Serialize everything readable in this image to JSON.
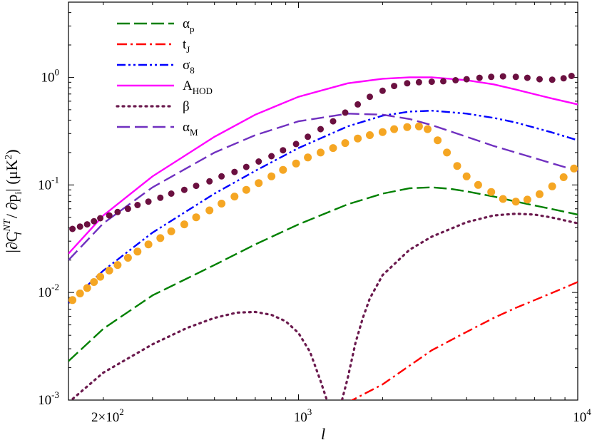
{
  "chart_data": {
    "type": "line",
    "title": "",
    "xscale": "log",
    "yscale": "log",
    "xlim": [
      150,
      10000
    ],
    "ylim": [
      0.001,
      5
    ],
    "xlabel": "l",
    "ylabel": "|∂C",
    "ylabel_parts": {
      "prefix": "|∂C",
      "sub": "l",
      "sup": "NT",
      "mid": " / ∂p",
      "sub2": "i",
      "suffix": "|  (μK",
      "sup2": "2",
      "end": ")"
    },
    "x_ticks": [
      {
        "value": 200,
        "base": "2×10",
        "exp": "2"
      },
      {
        "value": 1000,
        "base": "10",
        "exp": "3"
      },
      {
        "value": 10000,
        "base": "10",
        "exp": "4"
      }
    ],
    "y_ticks": [
      {
        "value": 0.001,
        "base": "10",
        "exp": "-3"
      },
      {
        "value": 0.01,
        "base": "10",
        "exp": "-2"
      },
      {
        "value": 0.1,
        "base": "10",
        "exp": "-1"
      },
      {
        "value": 1,
        "base": "10",
        "exp": "0"
      }
    ],
    "legend_position": "top-left",
    "series": [
      {
        "name": "alpha_p",
        "label_main": "α",
        "label_sub": "p",
        "color": "#008000",
        "dash": "18,6",
        "style": "line",
        "x": [
          150,
          200,
          300,
          500,
          700,
          1000,
          1500,
          2000,
          2500,
          3000,
          3500,
          4000,
          5000,
          6000,
          8000,
          10000
        ],
        "y": [
          0.0023,
          0.0046,
          0.0094,
          0.018,
          0.028,
          0.043,
          0.066,
          0.083,
          0.093,
          0.095,
          0.092,
          0.087,
          0.078,
          0.07,
          0.06,
          0.053
        ]
      },
      {
        "name": "t_J",
        "label_main": "t",
        "label_sub": "J",
        "color": "#ff0000",
        "dash": "14,5,3,5",
        "style": "line",
        "x": [
          1500,
          2000,
          3000,
          4000,
          5000,
          6000,
          8000,
          10000
        ],
        "y": [
          0.00095,
          0.0014,
          0.0029,
          0.0043,
          0.0058,
          0.0072,
          0.0098,
          0.0125
        ]
      },
      {
        "name": "sigma_8",
        "label_main": "σ",
        "label_sub": "8",
        "color": "#0000ff",
        "dash": "12,4,3,4,3,4",
        "style": "line",
        "x": [
          150,
          200,
          300,
          500,
          700,
          1000,
          1500,
          2000,
          2500,
          3000,
          4000,
          5000,
          6000,
          8000,
          10000
        ],
        "y": [
          0.008,
          0.016,
          0.036,
          0.083,
          0.135,
          0.22,
          0.35,
          0.44,
          0.48,
          0.49,
          0.46,
          0.42,
          0.38,
          0.31,
          0.26
        ]
      },
      {
        "name": "A_HOD",
        "label_main": "A",
        "label_sub": "HOD",
        "color": "#ff00ff",
        "dash": "",
        "style": "line",
        "x": [
          150,
          200,
          300,
          500,
          700,
          1000,
          1500,
          2000,
          2500,
          3000,
          4000,
          5000,
          6000,
          8000,
          10000
        ],
        "y": [
          0.023,
          0.052,
          0.12,
          0.28,
          0.45,
          0.66,
          0.88,
          0.97,
          1.0,
          1.0,
          0.94,
          0.86,
          0.77,
          0.64,
          0.56
        ]
      },
      {
        "name": "beta",
        "label_main": "β",
        "label_sub": "",
        "color": "#6b1a4e",
        "dash": "2,6",
        "style": "dotted",
        "x": [
          150,
          200,
          300,
          400,
          500,
          600,
          700,
          800,
          900,
          1000,
          1100,
          1200,
          1300,
          1400,
          1500,
          1600,
          1700,
          1800,
          2000,
          2500,
          3000,
          4000,
          5000,
          6000,
          7000,
          8000,
          10000
        ],
        "y": [
          0.00095,
          0.0018,
          0.0033,
          0.0047,
          0.0058,
          0.0065,
          0.0066,
          0.0062,
          0.0054,
          0.0042,
          0.0028,
          0.0015,
          0.0008,
          0.0008,
          0.0016,
          0.0034,
          0.0058,
          0.0088,
          0.0145,
          0.025,
          0.033,
          0.045,
          0.052,
          0.054,
          0.053,
          0.05,
          0.044
        ]
      },
      {
        "name": "alpha_M",
        "label_main": "α",
        "label_sub": "M",
        "color": "#7030c0",
        "dash": "18,7",
        "style": "line",
        "x": [
          150,
          200,
          300,
          500,
          700,
          1000,
          1500,
          2000,
          2500,
          3000,
          4000,
          5000,
          6000,
          8000,
          10000
        ],
        "y": [
          0.02,
          0.044,
          0.095,
          0.2,
          0.29,
          0.39,
          0.46,
          0.45,
          0.41,
          0.36,
          0.28,
          0.23,
          0.2,
          0.16,
          0.135
        ]
      },
      {
        "name": "markers_maroon",
        "label_main": "",
        "label_sub": "",
        "color": "#6b1040",
        "dash": "",
        "style": "markers",
        "radius": 4.5,
        "x": [
          155,
          165,
          175,
          185,
          195,
          210,
          225,
          245,
          265,
          290,
          320,
          350,
          390,
          430,
          480,
          530,
          590,
          650,
          720,
          800,
          880,
          980,
          1080,
          1200,
          1330,
          1470,
          1630,
          1800,
          2000,
          2200,
          2450,
          2700,
          3000,
          3300,
          3650,
          4000,
          4450,
          4900,
          5400,
          6000,
          6600,
          7300,
          8100,
          8900,
          9500
        ],
        "y": [
          0.039,
          0.041,
          0.043,
          0.046,
          0.049,
          0.052,
          0.056,
          0.06,
          0.065,
          0.07,
          0.076,
          0.083,
          0.09,
          0.098,
          0.108,
          0.12,
          0.132,
          0.147,
          0.165,
          0.185,
          0.21,
          0.24,
          0.28,
          0.33,
          0.39,
          0.47,
          0.56,
          0.66,
          0.75,
          0.83,
          0.88,
          0.9,
          0.91,
          0.92,
          0.94,
          0.96,
          0.99,
          1.01,
          1.02,
          1.01,
          0.99,
          0.96,
          0.95,
          0.98,
          1.03
        ]
      },
      {
        "name": "markers_orange",
        "label_main": "",
        "label_sub": "",
        "color": "#f5a623",
        "dash": "",
        "style": "markers",
        "radius": 5.5,
        "x": [
          155,
          165,
          175,
          185,
          195,
          210,
          225,
          245,
          265,
          290,
          320,
          350,
          390,
          430,
          480,
          530,
          590,
          650,
          720,
          800,
          880,
          980,
          1080,
          1200,
          1330,
          1470,
          1630,
          1800,
          2000,
          2200,
          2450,
          2700,
          2900,
          3150,
          3400,
          3700,
          4000,
          4400,
          4900,
          5400,
          6000,
          6600,
          7300,
          8100,
          8900,
          9700
        ],
        "y": [
          0.0085,
          0.0098,
          0.011,
          0.0125,
          0.014,
          0.016,
          0.018,
          0.021,
          0.024,
          0.028,
          0.032,
          0.037,
          0.043,
          0.05,
          0.058,
          0.067,
          0.078,
          0.09,
          0.104,
          0.12,
          0.138,
          0.158,
          0.18,
          0.2,
          0.22,
          0.245,
          0.27,
          0.29,
          0.31,
          0.33,
          0.345,
          0.35,
          0.33,
          0.26,
          0.2,
          0.15,
          0.12,
          0.1,
          0.086,
          0.074,
          0.07,
          0.073,
          0.082,
          0.097,
          0.118,
          0.142
        ]
      }
    ]
  }
}
